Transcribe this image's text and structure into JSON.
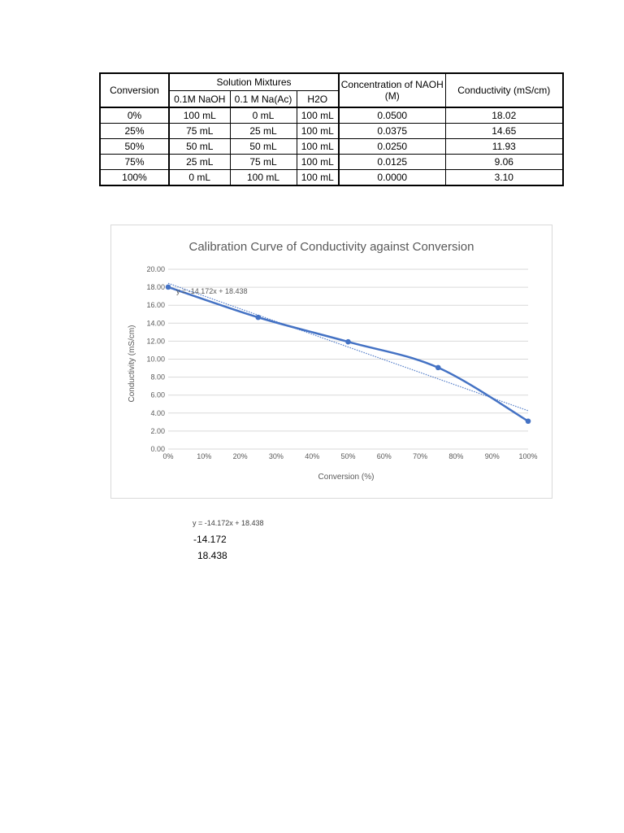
{
  "table": {
    "headers": {
      "conversion": "Conversion",
      "solution_mixtures": "Solution Mixtures",
      "naoh": "0.1M NaOH",
      "naac": "0.1 M Na(Ac)",
      "h2o": "H2O",
      "concentration": "Concentration of NAOH (M)",
      "conductivity": "Conductivity (mS/cm)"
    },
    "rows": [
      {
        "conversion": "0%",
        "naoh": "100 mL",
        "naac": "0 mL",
        "h2o": "100 mL",
        "concentration": "0.0500",
        "conductivity": "18.02"
      },
      {
        "conversion": "25%",
        "naoh": "75 mL",
        "naac": "25 mL",
        "h2o": "100 mL",
        "concentration": "0.0375",
        "conductivity": "14.65"
      },
      {
        "conversion": "50%",
        "naoh": "50 mL",
        "naac": "50 mL",
        "h2o": "100 mL",
        "concentration": "0.0250",
        "conductivity": "11.93"
      },
      {
        "conversion": "75%",
        "naoh": "25 mL",
        "naac": "75 mL",
        "h2o": "100 mL",
        "concentration": "0.0125",
        "conductivity": "9.06"
      },
      {
        "conversion": "100%",
        "naoh": "0 mL",
        "naac": "100 mL",
        "h2o": "100 mL",
        "concentration": "0.0000",
        "conductivity": "3.10"
      }
    ]
  },
  "chart_data": {
    "type": "line",
    "title": "Calibration Curve of Conductivity against Conversion",
    "xlabel": "Conversion (%)",
    "ylabel": "Conductivity (mS/cm)",
    "x": [
      0,
      0.25,
      0.5,
      0.75,
      1.0
    ],
    "series": [
      {
        "values": [
          18.02,
          14.65,
          11.93,
          9.06,
          3.1
        ],
        "color": "#4472c4"
      }
    ],
    "trendline": {
      "slope": -14.172,
      "intercept": 18.438,
      "label": "y = -14.172x + 18.438",
      "style": "dotted",
      "color": "#4472c4"
    },
    "xlim": [
      0,
      1.0
    ],
    "ylim": [
      0,
      20
    ],
    "x_ticks": [
      "0%",
      "10%",
      "20%",
      "30%",
      "40%",
      "50%",
      "60%",
      "70%",
      "80%",
      "90%",
      "100%"
    ],
    "y_ticks": [
      "0.00",
      "2.00",
      "4.00",
      "6.00",
      "8.00",
      "10.00",
      "12.00",
      "14.00",
      "16.00",
      "18.00",
      "20.00"
    ],
    "grid": "horizontal"
  },
  "below": {
    "equation": "y = -14.172x + 18.438",
    "slope": "-14.172",
    "intercept": "18.438"
  }
}
